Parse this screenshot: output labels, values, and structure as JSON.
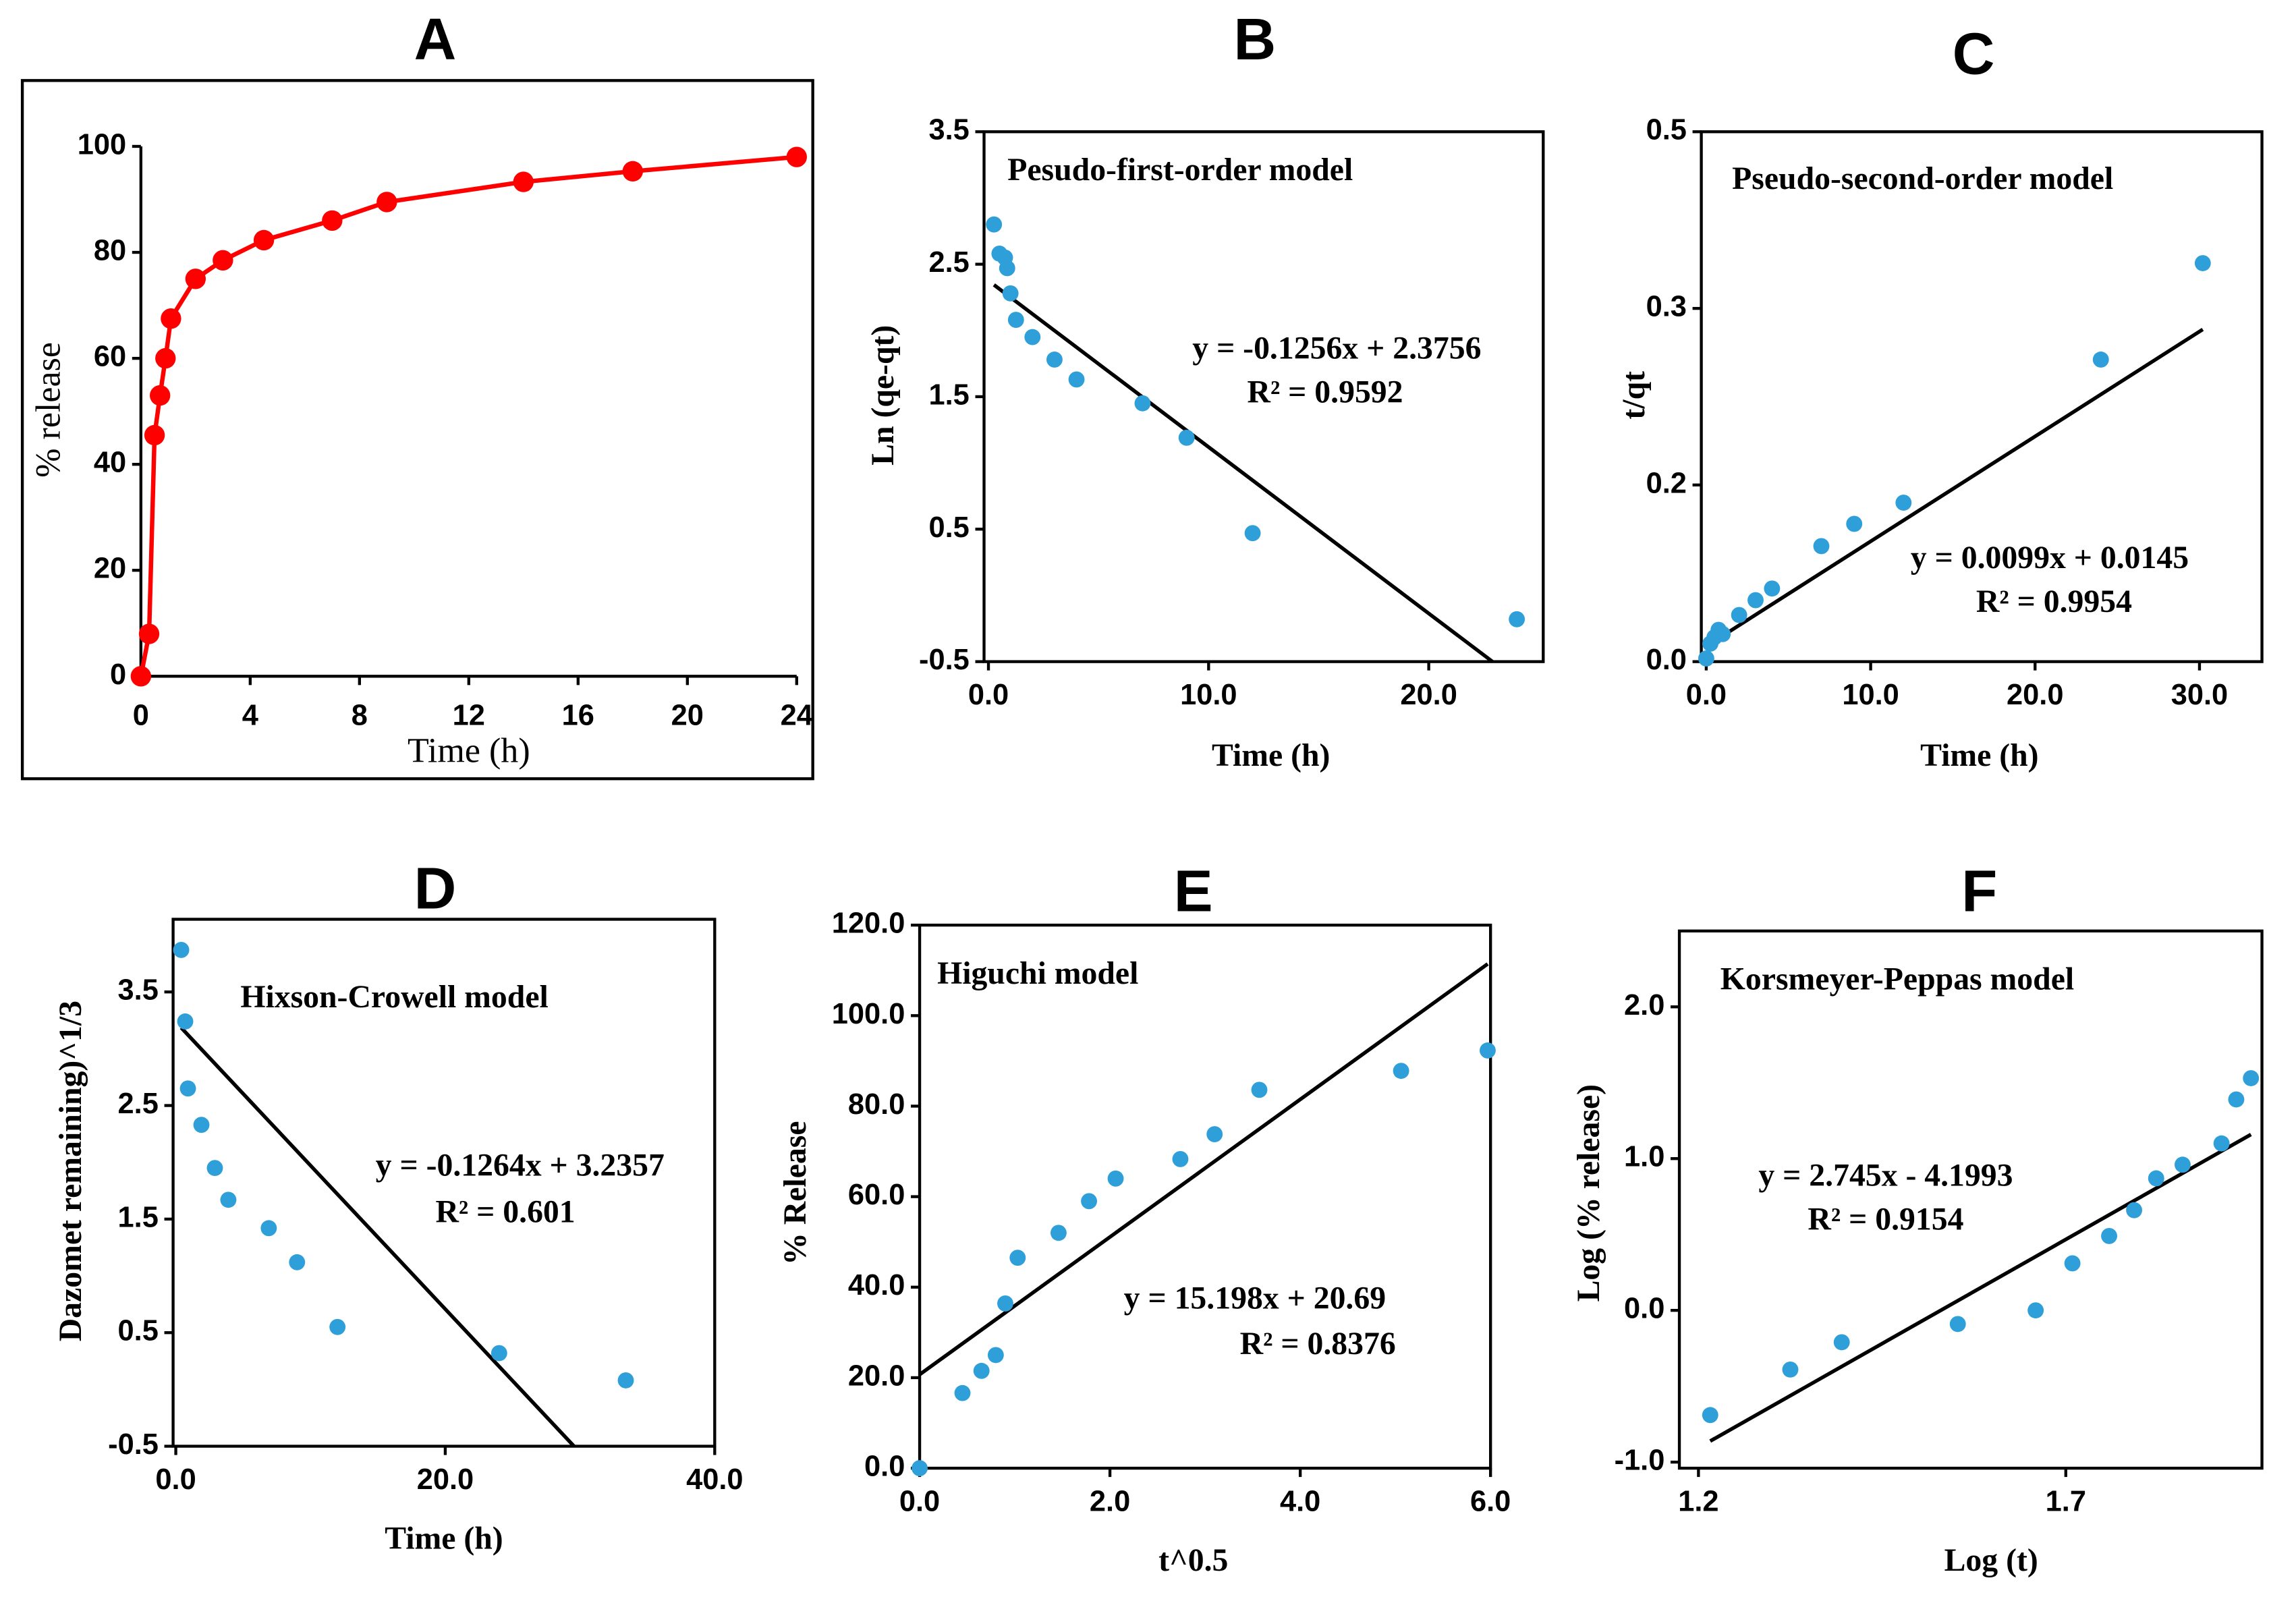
{
  "chart_data": [
    {
      "type": "line",
      "title": "A",
      "xlabel": "Time (h)",
      "ylabel": "% release",
      "color": "#ff0000",
      "x": [
        0,
        0.3,
        0.5,
        0.7,
        0.9,
        1.1,
        2,
        3,
        4.5,
        7,
        9,
        14,
        18,
        24
      ],
      "values": [
        0,
        8,
        45.5,
        53,
        60,
        67.5,
        75,
        78.5,
        82.3,
        86,
        89.5,
        93.3,
        95.3,
        98
      ],
      "xlim": [
        0,
        24
      ],
      "xticks": [
        0,
        4,
        8,
        12,
        16,
        20,
        24
      ],
      "ylim": [
        0,
        100
      ],
      "yticks": [
        0,
        20,
        40,
        60,
        80,
        100
      ]
    },
    {
      "type": "scatter",
      "title": "B",
      "xlabel": "Time (h)",
      "ylabel": "Ln (qe-qt)",
      "color": "#2e9fd8",
      "model": "Pesudo-first-order model",
      "x": [
        0.25,
        0.5,
        0.75,
        0.85,
        1,
        1.25,
        2,
        3,
        4,
        7,
        9,
        12,
        24
      ],
      "values": [
        2.8,
        2.58,
        2.55,
        2.47,
        2.28,
        2.08,
        1.95,
        1.78,
        1.63,
        1.45,
        1.19,
        0.47,
        -0.18
      ],
      "fit": {
        "slope": -0.1256,
        "intercept": 2.3756,
        "equation": "y = -0.1256x + 2.3756",
        "r2_label": "R² = 0.9592"
      },
      "xlim": [
        -0.2,
        25.2
      ],
      "xticks": [
        {
          "value": 0,
          "label": "0.0"
        },
        {
          "value": 10,
          "label": "10.0"
        },
        {
          "value": 20,
          "label": "20.0"
        }
      ],
      "ylim": [
        -0.5,
        3.5
      ],
      "yticks": [
        -0.5,
        0.5,
        1.5,
        2.5,
        3.5
      ]
    },
    {
      "type": "scatter",
      "title": "C",
      "xlabel": "Time (h)",
      "ylabel": "t/qt",
      "color": "#2e9fd8",
      "model": "Pseudo-second-order model",
      "x": [
        0,
        0.25,
        0.5,
        0.75,
        1,
        2,
        3,
        4,
        7,
        9,
        12,
        24,
        30.2
      ],
      "values": [
        0.003,
        0.017,
        0.023,
        0.03,
        0.026,
        0.044,
        0.058,
        0.069,
        0.109,
        0.13,
        0.15,
        0.285,
        0.376
      ],
      "fit": {
        "slope": 0.0099,
        "intercept": 0.0145,
        "equation": "y = 0.0099x + 0.0145",
        "r2_label": "R² = 0.9954"
      },
      "xlim": [
        -0.3,
        33.8
      ],
      "xticks": [
        {
          "value": 0,
          "label": "0.0"
        },
        {
          "value": 10,
          "label": "10.0"
        },
        {
          "value": 20,
          "label": "20.0"
        },
        {
          "value": 30,
          "label": "30.0"
        }
      ],
      "ylim": [
        0,
        0.5
      ],
      "yticks": [
        {
          "value": 0,
          "label": "0.0"
        },
        {
          "value": 0.1667,
          "label": "0.2"
        },
        {
          "value": 0.3333,
          "label": "0.3"
        },
        0.5
      ]
    },
    {
      "type": "scatter",
      "title": "D",
      "xlabel": "Time (h)",
      "ylabel": "Dazomet remaining)^1/3",
      "color": "#2e9fd8",
      "model": "Hixson-Crowell model",
      "x": [
        0.4,
        0.7,
        0.9,
        1.9,
        2.9,
        3.9,
        6.9,
        9,
        12,
        24,
        33.4
      ],
      "values": [
        3.87,
        3.24,
        2.65,
        2.33,
        1.95,
        1.67,
        1.42,
        1.12,
        0.55,
        0.32,
        0.08
      ],
      "fit": {
        "slope": -0.1264,
        "intercept": 3.2357,
        "equation": "y = -0.1264x + 3.2357",
        "r2_label": "R² = 0.601"
      },
      "xlim": [
        -0.2,
        40
      ],
      "xticks": [
        {
          "value": 0,
          "label": "0.0"
        },
        {
          "value": 20,
          "label": "20.0"
        },
        {
          "value": 40,
          "label": "40.0"
        }
      ],
      "ylim": [
        -0.5,
        4.14
      ],
      "yticks": [
        -0.5,
        0.5,
        1.5,
        2.5,
        3.5
      ]
    },
    {
      "type": "scatter",
      "title": "E",
      "xlabel": "t^0.5",
      "ylabel": "% Release",
      "color": "#2e9fd8",
      "model": "Higuchi model",
      "x": [
        0,
        0.45,
        0.65,
        0.8,
        0.9,
        1.03,
        1.46,
        1.78,
        2.06,
        2.74,
        3.1,
        3.57,
        5.06,
        5.97
      ],
      "values": [
        0,
        16.6,
        21.5,
        25,
        36.4,
        46.5,
        52,
        59,
        64,
        68.3,
        73.8,
        83.6,
        87.8,
        92.3
      ],
      "fit": {
        "slope": 15.198,
        "intercept": 20.69,
        "equation": "y = 15.198x + 20.69",
        "r2_label": "R² = 0.8376"
      },
      "xlim": [
        0,
        6
      ],
      "xticks": [
        {
          "value": 0,
          "label": "0.0"
        },
        {
          "value": 2,
          "label": "2.0"
        },
        {
          "value": 4,
          "label": "4.0"
        },
        {
          "value": 6,
          "label": "6.0"
        }
      ],
      "ylim": [
        0,
        120
      ],
      "yticks": [
        {
          "value": 0,
          "label": "0.0"
        },
        {
          "value": 20,
          "label": "20.0"
        },
        {
          "value": 40,
          "label": "40.0"
        },
        {
          "value": 60,
          "label": "60.0"
        },
        {
          "value": 80,
          "label": "80.0"
        },
        {
          "value": 100,
          "label": "100.0"
        },
        {
          "value": 120,
          "label": "120.0"
        }
      ]
    },
    {
      "type": "scatter",
      "title": "F",
      "xlabel": "Log (t)",
      "ylabel": "Log  (%  release)",
      "color": "#2e9fd8",
      "model": "Korsmeyer-Peppas model",
      "x": [
        1.216,
        1.325,
        1.395,
        1.553,
        1.659,
        1.709,
        1.759,
        1.793,
        1.823,
        1.859,
        1.912,
        1.932,
        1.952
      ],
      "values": [
        -0.69,
        -0.39,
        -0.21,
        -0.09,
        0.0,
        0.31,
        0.49,
        0.66,
        0.87,
        0.96,
        1.1,
        1.39,
        1.53
      ],
      "fit": {
        "slope": 2.745,
        "intercept": -4.1993,
        "equation": "y = 2.745x - 4.1993",
        "r2_label": "R² = 0.9154"
      },
      "xlim": [
        1.174,
        1.967
      ],
      "xticks": [
        1.2,
        1.7
      ],
      "ylim": [
        -1.04,
        2.5
      ],
      "yticks": [
        {
          "value": -1,
          "label": "-1.0"
        },
        {
          "value": 0,
          "label": "0.0"
        },
        {
          "value": 1,
          "label": "1.0"
        },
        {
          "value": 2,
          "label": "2.0"
        }
      ]
    }
  ]
}
